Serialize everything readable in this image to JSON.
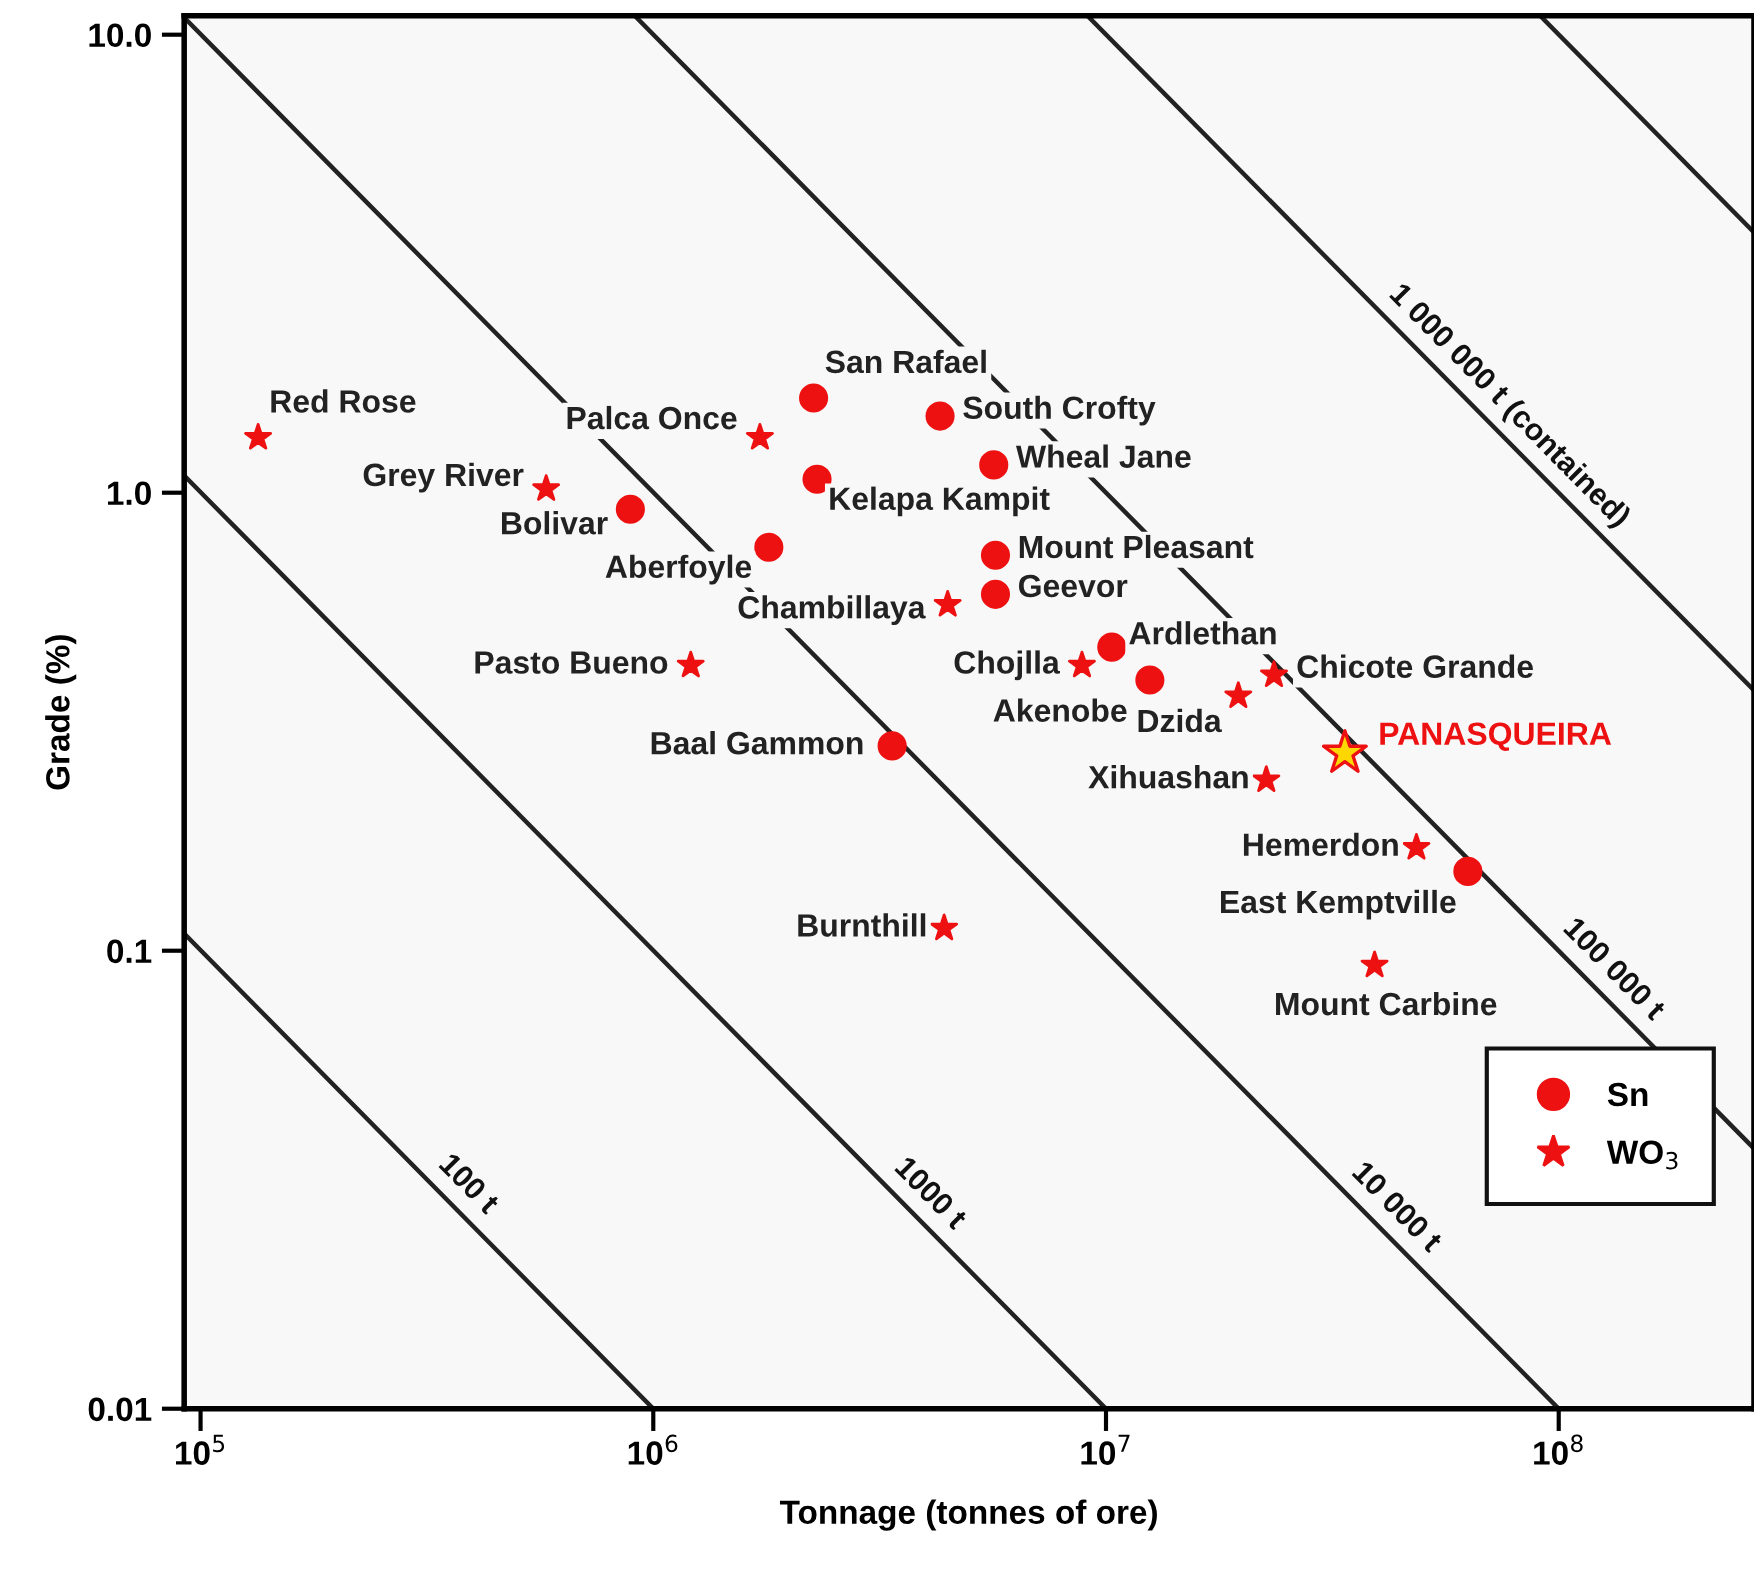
{
  "chart_data": {
    "type": "scatter",
    "xlabel": "Tonnage (tonnes of ore)",
    "ylabel": "Grade (%)",
    "log": "xy",
    "grid": false,
    "legend": "bottom right",
    "xlim": [
      92000,
      270000000
    ],
    "ylim": [
      0.01,
      11
    ],
    "xticks": [
      {
        "value": 100000,
        "label": "10$^{5}$"
      },
      {
        "value": 1000000,
        "label": "10$^{6}$"
      },
      {
        "value": 10000000,
        "label": "10$^{7}$"
      },
      {
        "value": 100000000,
        "label": "10$^{8}$"
      }
    ],
    "yticks": [
      0.01,
      0.1,
      {
        "value": 1,
        "label": "1.0"
      },
      {
        "value": 10,
        "label": "10.0"
      }
    ],
    "series": [
      {
        "type": "line",
        "name": "100 t",
        "color": "#222222",
        "line_style": "solid",
        "marker": "none",
        "x": [
          92000,
          1000000
        ],
        "values": [
          0.109,
          0.01
        ]
      },
      {
        "type": "line",
        "name": "1000 t",
        "color": "#222222",
        "line_style": "solid",
        "marker": "none",
        "x": [
          92000,
          10000000
        ],
        "values": [
          1.09,
          0.01
        ]
      },
      {
        "type": "line",
        "name": "10 000 t",
        "color": "#222222",
        "line_style": "solid",
        "marker": "none",
        "x": [
          92000,
          100000000
        ],
        "values": [
          10.9,
          0.01
        ]
      },
      {
        "type": "line",
        "name": "100 000 t",
        "color": "#222222",
        "line_style": "solid",
        "marker": "none",
        "x": [
          910000,
          270000000
        ],
        "values": [
          11,
          0.037
        ]
      },
      {
        "type": "line",
        "name": "1 000 000 t (contained)",
        "color": "#222222",
        "line_style": "solid",
        "marker": "none",
        "x": [
          9100000,
          270000000
        ],
        "values": [
          11,
          0.37
        ]
      },
      {
        "type": "line",
        "color": "#222222",
        "line_style": "solid",
        "marker": "none",
        "x": [
          91000000,
          270000000
        ],
        "values": [
          11,
          3.7
        ]
      },
      {
        "name": "Sn",
        "color": "#ee1111",
        "marker": "circle",
        "x": [
          2260000,
          4300000,
          5650000,
          2300000,
          890000,
          1800000,
          5700000,
          5700000,
          10300000,
          12500000,
          3370000,
          63000000
        ],
        "values": [
          1.61,
          1.47,
          1.15,
          1.07,
          0.92,
          0.76,
          0.73,
          0.6,
          0.46,
          0.39,
          0.28,
          0.149
        ]
      },
      {
        "name": "WO$_{3}$",
        "color": "#ee1111",
        "marker": "star",
        "x": [
          134000,
          1720000,
          580000,
          4470000,
          1210000,
          8850000,
          23500000,
          19600000,
          22600000,
          48500000,
          4390000,
          39200000
        ],
        "values": [
          1.32,
          1.32,
          1.02,
          0.57,
          0.42,
          0.42,
          0.4,
          0.36,
          0.236,
          0.168,
          0.112,
          0.093
        ]
      },
      {
        "color": "#ffd700",
        "marker": "star",
        "x": [
          33700000
        ],
        "values": [
          0.27
        ]
      }
    ],
    "annotations": [
      {
        "text": "San Rafael",
        "x": 2260000,
        "y": 1.61
      },
      {
        "text": "South Crofty",
        "x": 4300000,
        "y": 1.47
      },
      {
        "text": "Wheal Jane",
        "x": 5650000,
        "y": 1.15
      },
      {
        "text": "Kelapa Kampit",
        "x": 2300000,
        "y": 1.07
      },
      {
        "text": "Bolivar",
        "x": 890000,
        "y": 0.92
      },
      {
        "text": "Aberfoyle",
        "x": 1800000,
        "y": 0.76
      },
      {
        "text": "Mount Pleasant",
        "x": 5700000,
        "y": 0.73
      },
      {
        "text": "Geevor",
        "x": 5700000,
        "y": 0.6
      },
      {
        "text": "Ardlethan",
        "x": 10300000,
        "y": 0.46
      },
      {
        "text": "Akenobe",
        "x": 12500000,
        "y": 0.39
      },
      {
        "text": "Baal Gammon",
        "x": 3370000,
        "y": 0.28
      },
      {
        "text": "East Kemptville",
        "x": 63000000,
        "y": 0.149
      },
      {
        "text": "Red Rose",
        "x": 134000,
        "y": 1.32
      },
      {
        "text": "Palca Once",
        "x": 1720000,
        "y": 1.32
      },
      {
        "text": "Grey River",
        "x": 580000,
        "y": 1.02
      },
      {
        "text": "Chambillaya",
        "x": 4470000,
        "y": 0.57
      },
      {
        "text": "Pasto Bueno",
        "x": 1210000,
        "y": 0.42
      },
      {
        "text": "Chojlla",
        "x": 8850000,
        "y": 0.42
      },
      {
        "text": "Chicote Grande",
        "x": 23500000,
        "y": 0.4
      },
      {
        "text": "Dzida",
        "x": 19600000,
        "y": 0.36
      },
      {
        "text": "Xihuashan",
        "x": 22600000,
        "y": 0.236
      },
      {
        "text": "Hemerdon",
        "x": 48500000,
        "y": 0.168
      },
      {
        "text": "Burnthill",
        "x": 4390000,
        "y": 0.112
      },
      {
        "text": "Mount Carbine",
        "x": 39200000,
        "y": 0.093
      },
      {
        "text": "PANASQUEIRA",
        "x": 33700000,
        "y": 0.27
      }
    ]
  }
}
